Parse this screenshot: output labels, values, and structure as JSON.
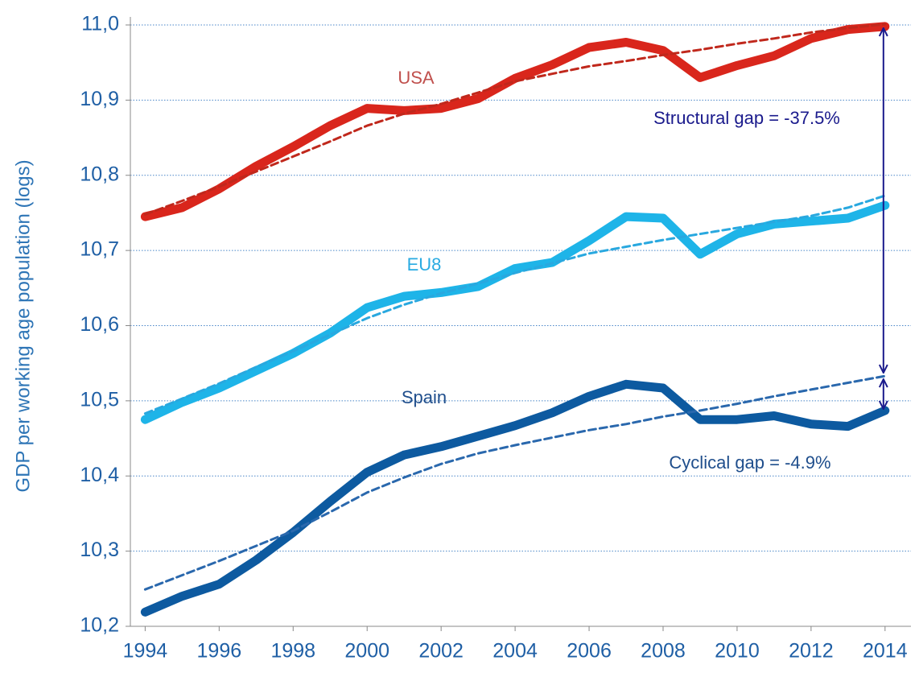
{
  "chart_data": {
    "type": "line",
    "y_axis_label": "GDP per working age population (logs)",
    "x": [
      1994,
      1995,
      1996,
      1997,
      1998,
      1999,
      2000,
      2001,
      2002,
      2003,
      2004,
      2005,
      2006,
      2007,
      2008,
      2009,
      2010,
      2011,
      2012,
      2013,
      2014
    ],
    "xlim": [
      1993.6,
      2014.7
    ],
    "xticks": [
      1994,
      1996,
      1998,
      2000,
      2002,
      2004,
      2006,
      2008,
      2010,
      2012,
      2014
    ],
    "ylim": [
      10.2,
      11.0
    ],
    "yticks": [
      {
        "value": 10.2,
        "label": "10,2"
      },
      {
        "value": 10.3,
        "label": "10,3"
      },
      {
        "value": 10.4,
        "label": "10,4"
      },
      {
        "value": 10.5,
        "label": "10,5"
      },
      {
        "value": 10.6,
        "label": "10,6"
      },
      {
        "value": 10.7,
        "label": "10,7"
      },
      {
        "value": 10.8,
        "label": "10,8"
      },
      {
        "value": 10.9,
        "label": "10,9"
      },
      {
        "value": 11.0,
        "label": "11,0"
      }
    ],
    "grid": true,
    "series": [
      {
        "name": "USA",
        "color": "#d9261c",
        "label_color": "#c0504d",
        "values": [
          10.745,
          10.757,
          10.782,
          10.812,
          10.838,
          10.866,
          10.889,
          10.886,
          10.889,
          10.902,
          10.929,
          10.947,
          10.97,
          10.977,
          10.966,
          10.93,
          10.946,
          10.959,
          10.982,
          10.994,
          10.998
        ]
      },
      {
        "name": "EU8",
        "color": "#1eb4e8",
        "label_color": "#29abe2",
        "values": [
          10.475,
          10.498,
          10.517,
          10.54,
          10.563,
          10.59,
          10.624,
          10.639,
          10.644,
          10.652,
          10.676,
          10.684,
          10.713,
          10.745,
          10.743,
          10.695,
          10.722,
          10.735,
          10.739,
          10.743,
          10.76
        ]
      },
      {
        "name": "Spain",
        "color": "#0d5aa0",
        "label_color": "#1f4e8c",
        "values": [
          10.219,
          10.24,
          10.256,
          10.288,
          10.325,
          10.366,
          10.405,
          10.428,
          10.439,
          10.453,
          10.467,
          10.484,
          10.506,
          10.522,
          10.517,
          10.475,
          10.475,
          10.48,
          10.469,
          10.466,
          10.487
        ]
      }
    ],
    "trend_lines": [
      {
        "color": "#c0281c",
        "values": [
          10.748,
          10.766,
          10.785,
          10.805,
          10.825,
          10.845,
          10.866,
          10.882,
          10.895,
          10.91,
          10.925,
          10.935,
          10.945,
          10.952,
          10.96,
          10.967,
          10.975,
          10.982,
          10.99,
          10.996,
          11.001
        ]
      },
      {
        "color": "#29a8df",
        "values": [
          10.483,
          10.503,
          10.523,
          10.545,
          10.566,
          10.588,
          10.61,
          10.628,
          10.643,
          10.656,
          10.67,
          10.683,
          10.696,
          10.705,
          10.714,
          10.722,
          10.73,
          10.738,
          10.746,
          10.757,
          10.773
        ]
      },
      {
        "color": "#2a68ad",
        "values": [
          10.249,
          10.268,
          10.287,
          10.307,
          10.327,
          10.352,
          10.378,
          10.398,
          10.416,
          10.43,
          10.441,
          10.451,
          10.461,
          10.469,
          10.479,
          10.487,
          10.496,
          10.506,
          10.515,
          10.524,
          10.533
        ]
      }
    ],
    "annotations": {
      "structural_gap": "Structural gap = -37.5%",
      "cyclical_gap": "Cyclical gap = -4.9%"
    }
  }
}
